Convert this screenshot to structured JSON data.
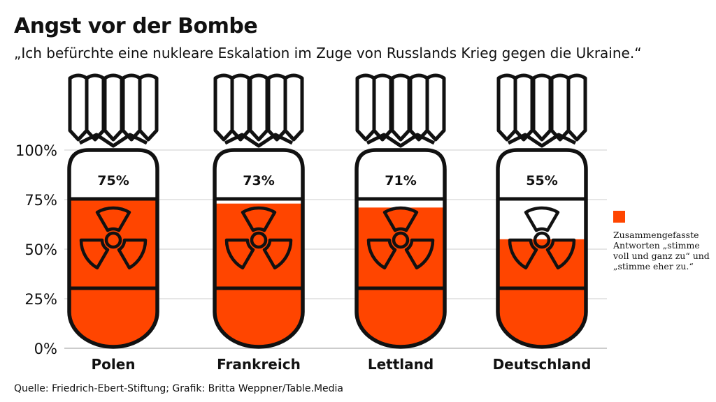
{
  "title": "Angst vor der Bombe",
  "subtitle": "„Ich befürchte eine nukleare Eskalation im Zuge von Russlands Krieg gegen die Ukraine.“",
  "source": "Quelle: Friedrich-Ebert-Stiftung; Grafik: Britta Weppner/Table.Media",
  "colors": {
    "fill": "#ff4500",
    "stroke": "#111111",
    "grid": "#cccccc"
  },
  "legend": {
    "label": "Zusammengefasste Antworten „stimme voll und ganz zu“ und „stimme eher zu.“"
  },
  "chart_data": {
    "type": "bar",
    "categories": [
      "Polen",
      "Frankreich",
      "Lettland",
      "Deutschland"
    ],
    "values": [
      75,
      73,
      71,
      55
    ],
    "value_labels": [
      "75%",
      "73%",
      "71%",
      "55%"
    ],
    "yticks": [
      "0%",
      "25%",
      "50%",
      "75%",
      "100%"
    ],
    "ylim": [
      0,
      100
    ],
    "grid": true,
    "legend_position": "right"
  }
}
